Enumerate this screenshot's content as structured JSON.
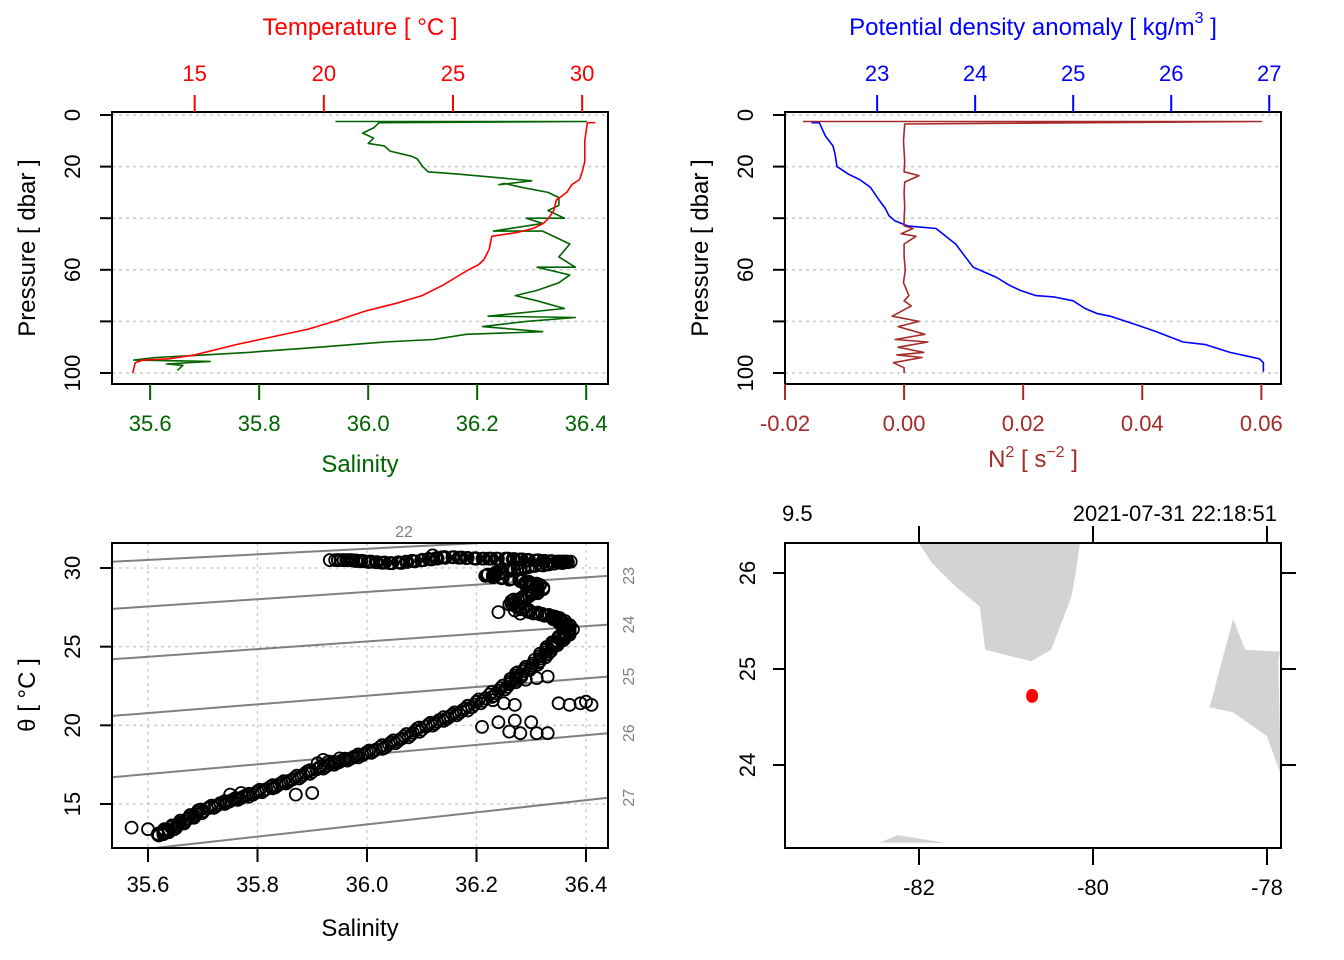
{
  "chart_data": [
    {
      "id": "profile-ts",
      "type": "line",
      "title": "",
      "ylabel": "Pressure [ dbar ]",
      "ylim": [
        0,
        100
      ],
      "y_reversed": true,
      "y_ticks": [
        0,
        20,
        40,
        60,
        80,
        100
      ],
      "y_tick_labels": [
        "0",
        "20",
        "",
        "60",
        "",
        "100"
      ],
      "grid": true,
      "axes": {
        "bottom": {
          "label": "Salinity",
          "color": "#006400",
          "range": [
            35.53,
            36.44
          ],
          "ticks": [
            35.6,
            35.8,
            36.0,
            36.2,
            36.4
          ],
          "tick_labels": [
            "35.6",
            "35.8",
            "36.0",
            "36.2",
            "36.4"
          ]
        },
        "top": {
          "label": "Temperature [ °C ]",
          "color": "#ff0000",
          "range": [
            11.8,
            31.0
          ],
          "ticks": [
            15,
            20,
            25,
            30
          ],
          "tick_labels": [
            "15",
            "20",
            "25",
            "30"
          ]
        }
      },
      "series": [
        {
          "name": "Salinity",
          "axis": "bottom",
          "color": "#006400",
          "x": [
            35.94,
            36.4,
            36.02,
            36.01,
            35.99,
            36.0,
            36.01,
            36.0,
            36.03,
            36.04,
            36.08,
            36.09,
            36.1,
            36.11,
            36.17,
            36.3,
            36.24,
            36.25,
            36.28,
            36.33,
            36.35,
            36.35,
            36.33,
            36.36,
            36.29,
            36.32,
            36.23,
            36.32,
            36.37,
            36.35,
            36.38,
            36.31,
            36.37,
            36.35,
            36.31,
            36.27,
            36.31,
            36.36,
            36.22,
            36.38,
            36.29,
            36.21,
            36.32,
            36.18,
            36.12,
            36.03,
            35.91,
            35.78,
            35.7,
            35.61,
            35.57,
            35.71,
            35.63,
            35.66,
            35.65
          ],
          "y": [
            2.5,
            2.5,
            3,
            5,
            7,
            8,
            9,
            11,
            12,
            14,
            16,
            17,
            20,
            22,
            23,
            25.5,
            27,
            26.5,
            28,
            30,
            32,
            35,
            37,
            40,
            40,
            42,
            45,
            45,
            50,
            55,
            59,
            59,
            62,
            65,
            68,
            70,
            72,
            75,
            78,
            78.5,
            80,
            82,
            84,
            85,
            87,
            88,
            90,
            92,
            93,
            94,
            95,
            95.5,
            96.5,
            97,
            99
          ]
        },
        {
          "name": "Temperature",
          "axis": "top",
          "color": "#ff0000",
          "x": [
            30.5,
            30.2,
            30.1,
            30.1,
            30.0,
            29.9,
            29.6,
            29.4,
            29.0,
            28.9,
            28.7,
            28.5,
            28.1,
            27.5,
            26.5,
            26.4,
            26.2,
            26.0,
            25.6,
            25.1,
            24.6,
            23.8,
            22.8,
            21.6,
            20.4,
            19.4,
            18.0,
            16.6,
            15.8,
            15.0,
            14.0,
            13.0,
            12.7,
            12.6
          ],
          "y": [
            3,
            3,
            10,
            18,
            22,
            25,
            27,
            30,
            33,
            37,
            40,
            42,
            44,
            45.5,
            47,
            52,
            56,
            58,
            60,
            63,
            66,
            70,
            73,
            76,
            80,
            83,
            86,
            89,
            91,
            93,
            94.5,
            95,
            96,
            100
          ]
        }
      ]
    },
    {
      "id": "profile-density",
      "type": "line",
      "title": "",
      "ylabel": "Pressure [ dbar ]",
      "ylim": [
        0,
        100
      ],
      "y_reversed": true,
      "y_ticks": [
        0,
        20,
        40,
        60,
        80,
        100
      ],
      "y_tick_labels": [
        "0",
        "20",
        "",
        "60",
        "",
        "100"
      ],
      "grid": true,
      "axes": {
        "bottom": {
          "label": "N² [ s⁻² ]",
          "label_base": "N",
          "label_sup": "2",
          "label_unit_base": "s",
          "label_unit_sup": "−2",
          "color": "#a52a2a",
          "range": [
            -0.02,
            0.0633
          ],
          "ticks": [
            -0.02,
            0.0,
            0.02,
            0.04,
            0.06
          ],
          "tick_labels": [
            "-0.02",
            "0.00",
            "0.02",
            "0.04",
            "0.06"
          ]
        },
        "top": {
          "label": "Potential density anomaly [ kg/m³ ]",
          "label_base": "Potential density anomaly [ kg/m",
          "label_sup": "3",
          "label_end": " ]",
          "color": "#0000ff",
          "range": [
            22.06,
            27.12
          ],
          "ticks": [
            23,
            24,
            25,
            26,
            27
          ],
          "tick_labels": [
            "23",
            "24",
            "25",
            "26",
            "27"
          ]
        }
      },
      "series": [
        {
          "name": "Potential density anomaly",
          "axis": "top",
          "color": "#0000ff",
          "x": [
            22.33,
            22.41,
            22.47,
            22.55,
            22.57,
            22.59,
            22.71,
            22.82,
            22.93,
            23.02,
            23.08,
            23.12,
            23.18,
            23.31,
            23.6,
            23.7,
            23.8,
            23.88,
            23.98,
            24.1,
            24.22,
            24.35,
            24.46,
            24.62,
            24.8,
            25.0,
            25.12,
            25.25,
            25.38,
            25.62,
            25.85,
            26.12,
            26.35,
            26.6,
            26.9,
            26.94,
            26.94
          ],
          "y": [
            3,
            3,
            8,
            12,
            15,
            20,
            23,
            25,
            28,
            33,
            36,
            39,
            41,
            43,
            44,
            47,
            50,
            54,
            59,
            61,
            63,
            66,
            68,
            70,
            70.5,
            72,
            75,
            77,
            78,
            81,
            84,
            88,
            89,
            92,
            94.5,
            96,
            99.5
          ]
        },
        {
          "name": "N²",
          "axis": "bottom",
          "color": "#a52a2a",
          "x": [
            -0.017,
            0.06,
            0.0001,
            -0.0001,
            0.0001,
            0.0,
            0.0025,
            0.0001,
            0.0,
            0.0001,
            0.0,
            0.0,
            0.0015,
            -0.0005,
            0.002,
            0.0,
            0.0,
            0.0002,
            -0.0001,
            0.0008,
            0.0,
            0.0012,
            -0.002,
            0.0025,
            -0.001,
            0.0035,
            -0.0015,
            0.004,
            -0.001,
            0.0033,
            -0.0012,
            0.003,
            -0.0018,
            0.0,
            0.0
          ],
          "y": [
            2.5,
            2.5,
            3.5,
            10,
            18,
            22,
            23.5,
            26,
            30,
            36,
            40,
            43,
            44,
            46,
            47,
            50,
            55,
            60,
            65,
            70,
            72,
            74,
            78,
            80,
            82,
            85,
            87,
            88,
            90,
            92,
            93,
            94,
            96,
            98,
            100
          ]
        }
      ]
    },
    {
      "id": "ts-diagram",
      "type": "scatter",
      "title": "",
      "xlabel": "Salinity",
      "ylabel": "θ [ °C ]",
      "xlim": [
        35.53,
        36.44
      ],
      "ylim": [
        12.3,
        31.7
      ],
      "x_ticks": [
        35.6,
        35.8,
        36.0,
        36.2,
        36.4
      ],
      "x_tick_labels": [
        "35.6",
        "35.8",
        "36.0",
        "36.2",
        "36.4"
      ],
      "y_ticks": [
        15,
        20,
        25,
        30
      ],
      "y_tick_labels": [
        "15",
        "20",
        "25",
        "30"
      ],
      "grid": true,
      "marker": "open-circle",
      "isopycnals": {
        "color": "#808080",
        "lines": [
          {
            "label": "22",
            "theta_at_smin": 30.4,
            "theta_at_smax": 32.0,
            "label_position": "top"
          },
          {
            "label": "23",
            "theta_at_smin": 27.4,
            "theta_at_smax": 29.5,
            "label_position": "right"
          },
          {
            "label": "24",
            "theta_at_smin": 24.2,
            "theta_at_smax": 26.4,
            "label_position": "right"
          },
          {
            "label": "25",
            "theta_at_smin": 20.6,
            "theta_at_smax": 23.1,
            "label_position": "right"
          },
          {
            "label": "26",
            "theta_at_smin": 16.7,
            "theta_at_smax": 19.5,
            "label_position": "right"
          },
          {
            "label": "27",
            "theta_at_smin": 11.9,
            "theta_at_smax": 15.4,
            "label_position": "right"
          }
        ]
      },
      "points_path": {
        "S": [
          35.94,
          35.97,
          36.0,
          36.05,
          36.1,
          36.15,
          36.2,
          36.25,
          36.3,
          36.35,
          36.37,
          36.3,
          36.25,
          36.22,
          36.28,
          36.32,
          36.3,
          36.26,
          36.3,
          36.34,
          36.36,
          36.37,
          36.35,
          36.33,
          36.31,
          36.28,
          36.26,
          36.22,
          36.18,
          36.14,
          36.1,
          36.06,
          36.02,
          35.98,
          35.94,
          35.9,
          35.86,
          35.82,
          35.78,
          35.74,
          35.7,
          35.67,
          35.64,
          35.62
        ],
        "theta": [
          30.5,
          30.5,
          30.4,
          30.3,
          30.5,
          30.7,
          30.6,
          30.6,
          30.5,
          30.4,
          30.4,
          30.1,
          29.8,
          29.5,
          29.2,
          28.8,
          28.3,
          27.8,
          27.2,
          26.9,
          26.5,
          26.0,
          25.4,
          24.8,
          24.0,
          23.3,
          22.6,
          21.8,
          21.0,
          20.4,
          19.8,
          19.1,
          18.5,
          18.0,
          17.6,
          17.1,
          16.5,
          16.0,
          15.5,
          15.1,
          14.6,
          14.0,
          13.4,
          13.0
        ]
      },
      "points_outliers": {
        "S": [
          35.57,
          35.6,
          35.63,
          35.75,
          35.77,
          35.8,
          35.87,
          35.9,
          35.91,
          35.93,
          36.24,
          36.27,
          36.28,
          36.29,
          36.31,
          36.33,
          36.35,
          36.37,
          36.39,
          36.4,
          36.41,
          36.26,
          36.28,
          36.31,
          36.33,
          36.2,
          36.23,
          36.25,
          36.27,
          36.29,
          36.31,
          36.33,
          36.24,
          36.27,
          36.3,
          36.21,
          35.92,
          35.95,
          36.12
        ],
        "theta": [
          13.5,
          13.4,
          13.4,
          15.6,
          15.7,
          15.8,
          15.6,
          15.7,
          17.6,
          17.7,
          27.2,
          27.3,
          27.1,
          28.9,
          29.0,
          24.5,
          21.4,
          21.3,
          21.4,
          21.5,
          21.3,
          19.6,
          19.5,
          19.5,
          19.5,
          21.5,
          21.6,
          21.4,
          21.3,
          22.9,
          23.0,
          23.1,
          20.2,
          20.3,
          20.2,
          19.9,
          17.8,
          17.9,
          30.8
        ]
      }
    },
    {
      "id": "station-map",
      "type": "scatter",
      "title": "",
      "xlabel": "",
      "ylabel": "",
      "xlim": [
        -83.56,
        -77.84
      ],
      "ylim": [
        23.19,
        26.31
      ],
      "x_ticks": [
        -82,
        -80,
        -78
      ],
      "x_tick_labels": [
        "-82",
        "-80",
        "-78"
      ],
      "y_ticks": [
        24,
        25,
        26
      ],
      "y_tick_labels": [
        "24",
        "25",
        "26"
      ],
      "grid": false,
      "top_left_label": "9.5",
      "top_right_label": "2021-07-31 22:18:51",
      "station": {
        "lon": -80.7,
        "lat": 24.72,
        "color": "#ff0000"
      },
      "land_color": "#d3d3d3",
      "land_polygons": [
        {
          "name": "florida",
          "lon": [
            -82.0,
            -80.15,
            -80.2,
            -80.25,
            -80.48,
            -80.71,
            -81.24,
            -81.3,
            -81.57,
            -81.85,
            -82.0
          ],
          "lat": [
            26.31,
            26.31,
            26.0,
            25.75,
            25.2,
            25.08,
            25.2,
            25.65,
            25.85,
            26.1,
            26.31
          ]
        },
        {
          "name": "bahamas",
          "lon": [
            -78.39,
            -78.25,
            -77.85,
            -77.87,
            -77.84,
            -78.0,
            -78.39,
            -78.66,
            -78.39
          ],
          "lat": [
            25.52,
            25.2,
            25.18,
            25.1,
            23.9,
            24.3,
            24.55,
            24.6,
            25.52
          ]
        },
        {
          "name": "cuba-edge",
          "lon": [
            -82.45,
            -82.25,
            -81.7,
            -82.45
          ],
          "lat": [
            23.19,
            23.27,
            23.19,
            23.19
          ]
        }
      ]
    }
  ]
}
